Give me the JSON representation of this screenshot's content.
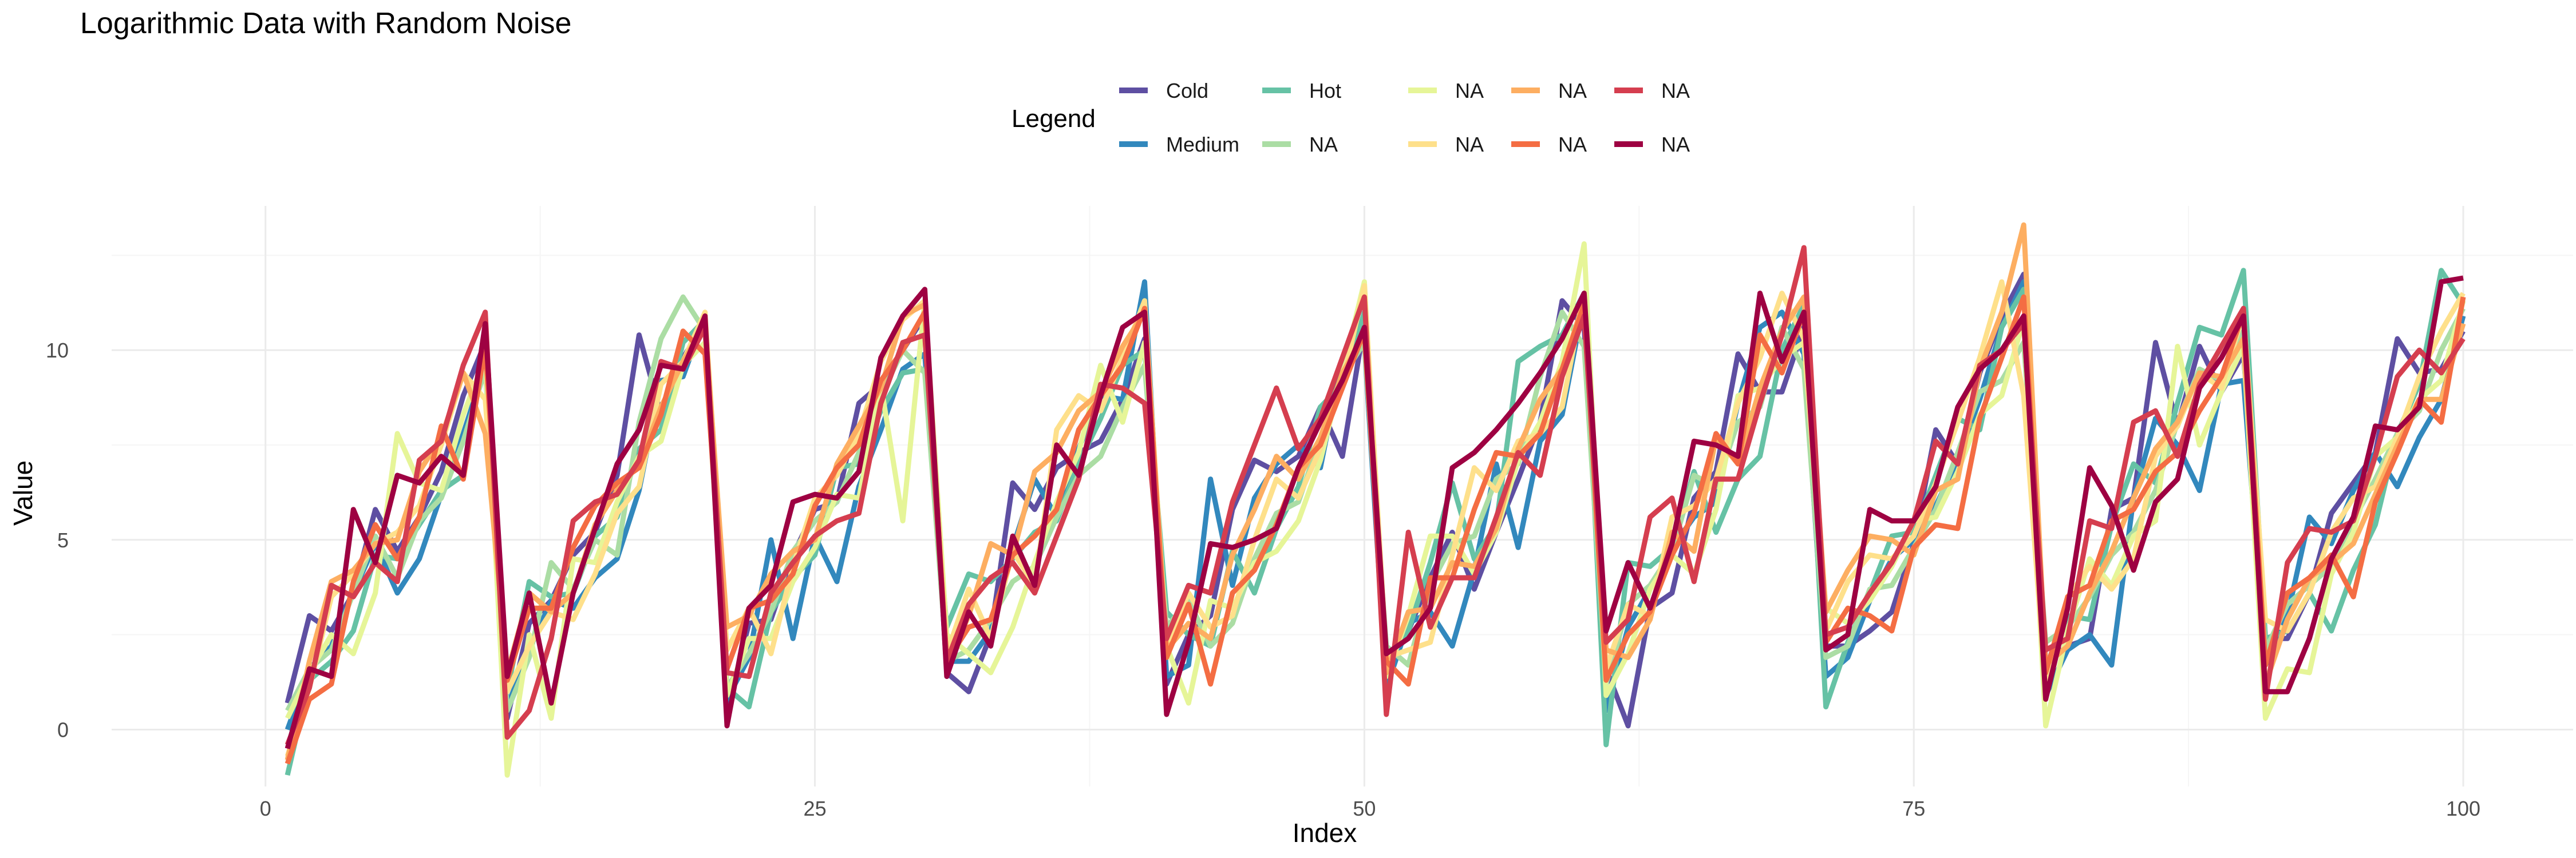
{
  "chart_data": {
    "type": "line",
    "title": "Logarithmic Data with Random Noise",
    "xlabel": "Index",
    "ylabel": "Value",
    "xlim": [
      -7,
      105
    ],
    "ylim": [
      -1.5,
      13.8
    ],
    "x_ticks": [
      0,
      25,
      50,
      75,
      100
    ],
    "y_ticks": [
      0,
      5,
      10
    ],
    "grid": true,
    "legend": {
      "title": "Legend",
      "position": "top",
      "entries": [
        {
          "label": "Cold",
          "color": "#5E4FA2"
        },
        {
          "label": "Medium",
          "color": "#3288BD"
        },
        {
          "label": "Hot",
          "color": "#66C2A5"
        },
        {
          "label": "NA",
          "color": "#ABDDA4"
        },
        {
          "label": "NA",
          "color": "#E6F598"
        },
        {
          "label": "NA",
          "color": "#FEE08B"
        },
        {
          "label": "NA",
          "color": "#FDAE61"
        },
        {
          "label": "NA",
          "color": "#F46D43"
        },
        {
          "label": "NA",
          "color": "#D53E4F"
        },
        {
          "label": "NA",
          "color": "#9E0142"
        }
      ]
    },
    "x": [
      1,
      2,
      3,
      4,
      5,
      6,
      7,
      8,
      9,
      10,
      11,
      12,
      13,
      14,
      15,
      16,
      17,
      18,
      19,
      20,
      21,
      22,
      23,
      24,
      25,
      26,
      27,
      28,
      29,
      30,
      31,
      32,
      33,
      34,
      35,
      36,
      37,
      38,
      39,
      40,
      41,
      42,
      43,
      44,
      45,
      46,
      47,
      48,
      49,
      50,
      51,
      52,
      53,
      54,
      55,
      56,
      57,
      58,
      59,
      60,
      61,
      62,
      63,
      64,
      65,
      66,
      67,
      68,
      69,
      70,
      71,
      72,
      73,
      74,
      75,
      76,
      77,
      78,
      79,
      80,
      81,
      82,
      83,
      84,
      85,
      86,
      87,
      88,
      89,
      90,
      91,
      92,
      93,
      94,
      95,
      96,
      97,
      98,
      99,
      100
    ],
    "series": [
      {
        "name": "Cold",
        "color": "#5E4FA2",
        "values": [
          0.7,
          3.0,
          2.6,
          3.6,
          5.8,
          4.7,
          5.6,
          6.8,
          8.8,
          10.2,
          0.3,
          2.8,
          3.4,
          4.6,
          5.2,
          6.7,
          10.4,
          8.3,
          9.8,
          10.7,
          0.5,
          2.8,
          2.9,
          4.6,
          5.8,
          6.0,
          8.6,
          9.1,
          10.0,
          10.9,
          1.5,
          1.0,
          2.5,
          6.5,
          5.8,
          6.9,
          7.3,
          7.6,
          8.7,
          10.3,
          1.2,
          2.5,
          3.0,
          5.8,
          7.1,
          6.8,
          7.2,
          8.5,
          7.2,
          10.7,
          1.8,
          2.6,
          4.0,
          5.2,
          3.7,
          5.2,
          6.6,
          8.1,
          11.3,
          10.6,
          1.6,
          0.1,
          3.2,
          3.6,
          6.1,
          6.8,
          9.9,
          8.9,
          8.9,
          10.6,
          2.2,
          2.2,
          2.6,
          3.1,
          4.9,
          7.9,
          7.0,
          9.4,
          10.9,
          12.0,
          1.8,
          2.2,
          2.4,
          5.8,
          6.1,
          10.2,
          8.0,
          10.1,
          8.9,
          9.9,
          2.4,
          2.4,
          3.6,
          5.7,
          6.5,
          7.3,
          10.3,
          9.4,
          9.5,
          10.5
        ]
      },
      {
        "name": "Medium",
        "color": "#3288BD",
        "values": [
          0.0,
          1.6,
          2.2,
          3.6,
          4.9,
          3.6,
          4.5,
          6.2,
          7.8,
          9.6,
          0.6,
          2.1,
          3.4,
          3.2,
          4.0,
          4.5,
          6.3,
          9.2,
          9.3,
          10.9,
          0.8,
          1.9,
          5.0,
          2.4,
          5.1,
          3.9,
          6.4,
          7.9,
          9.5,
          9.9,
          1.8,
          1.8,
          2.6,
          4.8,
          6.6,
          5.6,
          7.4,
          8.8,
          8.7,
          11.8,
          1.4,
          1.7,
          6.6,
          3.8,
          6.1,
          7.0,
          7.5,
          6.9,
          9.8,
          10.2,
          1.1,
          2.8,
          3.1,
          2.2,
          4.2,
          7.0,
          4.8,
          7.6,
          8.3,
          11.3,
          0.5,
          2.7,
          3.7,
          4.8,
          5.6,
          6.0,
          8.6,
          10.6,
          11.0,
          9.9,
          1.4,
          1.9,
          3.4,
          4.5,
          5.0,
          5.9,
          7.1,
          8.7,
          10.6,
          11.8,
          0.9,
          2.1,
          2.5,
          1.7,
          6.1,
          8.2,
          7.5,
          6.3,
          9.1,
          9.2,
          1.7,
          3.0,
          5.6,
          4.9,
          6.3,
          7.3,
          6.4,
          7.7,
          8.7,
          10.9
        ]
      },
      {
        "name": "Hot",
        "color": "#66C2A5",
        "values": [
          -1.2,
          1.3,
          1.8,
          2.6,
          4.6,
          4.5,
          5.4,
          6.3,
          6.7,
          10.1,
          1.0,
          3.9,
          3.5,
          3.6,
          5.1,
          5.6,
          7.4,
          7.9,
          10.2,
          10.8,
          1.1,
          0.6,
          3.1,
          4.0,
          4.6,
          6.9,
          7.0,
          8.4,
          9.4,
          9.5,
          2.7,
          4.1,
          3.9,
          4.5,
          5.2,
          5.5,
          7.0,
          8.2,
          9.6,
          10.0,
          3.1,
          2.5,
          2.2,
          4.7,
          3.6,
          5.3,
          6.4,
          8.5,
          9.1,
          11.0,
          1.9,
          2.6,
          4.4,
          6.5,
          4.5,
          5.4,
          9.7,
          10.1,
          10.4,
          11.5,
          -0.4,
          4.4,
          4.3,
          4.8,
          6.8,
          5.2,
          6.6,
          7.2,
          10.0,
          11.2,
          0.6,
          2.3,
          3.6,
          5.1,
          5.2,
          6.7,
          8.2,
          7.9,
          10.6,
          11.6,
          1.6,
          3.0,
          2.9,
          5.4,
          7.0,
          6.5,
          8.6,
          10.6,
          10.4,
          12.1,
          2.4,
          2.6,
          3.6,
          2.6,
          4.2,
          5.4,
          7.8,
          9.1,
          12.1,
          11.2
        ]
      },
      {
        "name": "NA",
        "color": "#ABDDA4",
        "values": [
          0.5,
          1.6,
          2.1,
          3.6,
          5.1,
          4.0,
          5.5,
          6.1,
          7.6,
          9.5,
          0.5,
          1.9,
          4.4,
          3.7,
          5.0,
          4.6,
          8.1,
          10.3,
          11.4,
          10.5,
          1.1,
          2.0,
          3.1,
          4.7,
          5.5,
          6.0,
          7.3,
          8.8,
          10.0,
          9.4,
          1.8,
          2.1,
          2.9,
          3.9,
          4.3,
          5.6,
          6.7,
          7.2,
          8.5,
          9.6,
          2.7,
          3.4,
          2.2,
          2.8,
          4.5,
          5.7,
          6.0,
          7.7,
          9.3,
          10.2,
          2.2,
          1.7,
          3.8,
          4.9,
          5.1,
          6.6,
          7.0,
          9.3,
          11.0,
          10.1,
          1.2,
          3.3,
          3.8,
          4.7,
          6.7,
          6.4,
          8.1,
          8.5,
          10.6,
          9.5,
          1.9,
          2.2,
          3.7,
          3.8,
          4.8,
          5.8,
          7.3,
          8.9,
          9.2,
          10.2,
          2.3,
          2.7,
          3.5,
          4.6,
          5.2,
          6.3,
          8.1,
          9.5,
          9.2,
          10.5,
          2.1,
          3.3,
          3.8,
          4.3,
          5.5,
          6.6,
          7.8,
          8.4,
          10.0,
          11.1
        ]
      },
      {
        "name": "NA",
        "color": "#E6F598",
        "values": [
          0.3,
          1.5,
          2.5,
          2.0,
          3.6,
          7.8,
          6.5,
          6.3,
          8.3,
          9.8,
          -1.2,
          2.5,
          0.3,
          4.5,
          4.4,
          6.0,
          7.2,
          7.6,
          9.6,
          10.2,
          0.9,
          2.4,
          2.4,
          3.9,
          4.8,
          6.2,
          6.1,
          9.1,
          5.5,
          11.3,
          2.5,
          2.0,
          1.5,
          2.7,
          4.4,
          6.0,
          7.3,
          9.6,
          8.1,
          10.2,
          2.2,
          0.7,
          3.4,
          3.2,
          4.4,
          4.7,
          5.5,
          7.1,
          9.4,
          11.8,
          1.4,
          3.0,
          5.1,
          5.1,
          4.1,
          5.2,
          7.1,
          8.1,
          9.7,
          12.8,
          0.9,
          2.0,
          3.7,
          4.6,
          4.1,
          5.8,
          8.8,
          9.0,
          9.8,
          10.2,
          3.2,
          2.8,
          3.4,
          4.3,
          5.5,
          5.6,
          6.8,
          8.3,
          8.8,
          10.8,
          0.1,
          2.6,
          4.5,
          3.8,
          5.1,
          5.5,
          10.1,
          7.5,
          8.9,
          10.1,
          0.3,
          1.6,
          1.5,
          4.1,
          5.2,
          7.2,
          7.7,
          8.7,
          9.2,
          11.3
        ]
      },
      {
        "name": "NA",
        "color": "#FEE08B",
        "values": [
          -0.7,
          1.1,
          3.5,
          4.1,
          4.9,
          5.2,
          5.9,
          7.5,
          9.4,
          8.7,
          1.0,
          2.2,
          3.1,
          2.9,
          4.1,
          5.7,
          6.4,
          9.1,
          9.7,
          11.0,
          2.1,
          3.2,
          2.0,
          4.3,
          6.1,
          6.7,
          7.8,
          9.7,
          10.8,
          11.3,
          2.0,
          3.7,
          2.4,
          4.7,
          3.8,
          7.9,
          8.8,
          8.4,
          9.8,
          11.3,
          2.2,
          3.6,
          2.7,
          3.0,
          5.0,
          6.6,
          6.1,
          7.4,
          9.1,
          11.7,
          1.9,
          2.1,
          2.3,
          4.6,
          6.9,
          6.3,
          7.6,
          7.8,
          8.5,
          11.5,
          1.6,
          3.3,
          3.0,
          5.6,
          5.9,
          6.6,
          8.6,
          9.8,
          11.5,
          10.3,
          2.6,
          3.9,
          4.6,
          4.5,
          5.1,
          6.5,
          8.1,
          9.8,
          11.8,
          8.8,
          1.0,
          3.5,
          4.3,
          3.7,
          4.5,
          7.2,
          8.0,
          9.4,
          9.0,
          11.0,
          2.9,
          2.6,
          3.6,
          5.2,
          6.1,
          6.4,
          7.7,
          9.3,
          10.5,
          11.5
        ]
      },
      {
        "name": "NA",
        "color": "#FDAE61",
        "values": [
          -0.8,
          1.8,
          3.9,
          4.2,
          4.9,
          5.0,
          6.8,
          7.7,
          9.4,
          7.8,
          1.5,
          3.6,
          3.1,
          3.6,
          5.4,
          6.3,
          7.0,
          8.5,
          9.7,
          10.7,
          2.7,
          3.0,
          4.1,
          4.7,
          5.0,
          7.0,
          8.0,
          9.0,
          10.9,
          11.2,
          1.7,
          3.0,
          4.9,
          4.6,
          6.8,
          7.3,
          8.4,
          8.9,
          10.1,
          11.0,
          2.1,
          2.8,
          2.4,
          4.6,
          5.8,
          7.2,
          6.6,
          7.7,
          9.4,
          10.4,
          1.5,
          3.1,
          3.2,
          4.4,
          4.3,
          5.3,
          7.4,
          8.7,
          9.5,
          11.3,
          2.1,
          1.9,
          2.9,
          5.2,
          4.7,
          7.7,
          7.0,
          9.0,
          10.5,
          11.4,
          3.1,
          4.2,
          5.1,
          5.0,
          4.6,
          6.3,
          6.6,
          9.5,
          11.0,
          13.3,
          1.7,
          2.2,
          3.6,
          4.7,
          6.1,
          7.4,
          8.1,
          9.4,
          9.3,
          10.3,
          1.2,
          2.9,
          4.0,
          4.4,
          4.9,
          6.2,
          7.5,
          8.7,
          8.7,
          10.7
        ]
      },
      {
        "name": "NA",
        "color": "#F46D43",
        "values": [
          -0.9,
          0.8,
          1.2,
          3.9,
          5.4,
          4.5,
          5.6,
          8.0,
          6.6,
          10.1,
          1.3,
          3.2,
          3.2,
          4.8,
          5.9,
          6.5,
          6.9,
          8.3,
          10.5,
          9.9,
          1.6,
          3.2,
          3.4,
          4.1,
          5.9,
          6.9,
          7.5,
          9.2,
          10.0,
          11.0,
          1.8,
          2.7,
          2.9,
          4.6,
          5.1,
          5.8,
          7.9,
          8.8,
          9.6,
          11.1,
          1.9,
          3.3,
          1.2,
          3.6,
          4.2,
          5.4,
          6.9,
          7.5,
          9.0,
          10.5,
          1.8,
          1.2,
          4.0,
          4.0,
          5.8,
          7.3,
          7.2,
          7.8,
          9.5,
          11.2,
          1.3,
          2.5,
          3.1,
          4.6,
          5.7,
          7.8,
          7.0,
          10.4,
          9.4,
          11.0,
          2.3,
          3.2,
          3.0,
          2.6,
          4.8,
          5.4,
          5.3,
          8.2,
          9.8,
          11.4,
          1.5,
          3.5,
          3.8,
          5.5,
          5.8,
          6.8,
          7.3,
          8.4,
          9.3,
          11.0,
          1.7,
          3.6,
          4.0,
          4.6,
          3.5,
          6.0,
          7.3,
          8.7,
          8.1,
          11.4
        ]
      },
      {
        "name": "NA",
        "color": "#D53E4F",
        "values": [
          -0.4,
          1.1,
          3.8,
          3.5,
          4.4,
          3.9,
          7.1,
          7.6,
          9.6,
          11.0,
          -0.2,
          0.5,
          2.4,
          5.5,
          6.0,
          6.2,
          7.1,
          9.7,
          9.5,
          10.6,
          1.5,
          1.4,
          3.6,
          4.4,
          5.1,
          5.5,
          5.7,
          8.6,
          10.2,
          10.4,
          1.8,
          3.3,
          4.0,
          4.4,
          3.6,
          5.1,
          6.6,
          9.1,
          9.0,
          8.6,
          2.4,
          3.8,
          3.6,
          6.0,
          7.5,
          9.0,
          7.4,
          8.2,
          9.8,
          11.4,
          0.4,
          5.2,
          2.7,
          4.0,
          4.0,
          5.6,
          7.3,
          6.7,
          9.3,
          10.9,
          2.3,
          2.9,
          5.6,
          6.1,
          3.9,
          6.6,
          6.6,
          8.6,
          10.4,
          12.7,
          2.5,
          2.7,
          3.6,
          4.4,
          5.5,
          7.6,
          7.0,
          9.6,
          10.0,
          10.7,
          2.1,
          2.4,
          5.5,
          5.3,
          8.1,
          8.4,
          7.2,
          9.1,
          10.1,
          11.1,
          0.8,
          4.4,
          5.3,
          5.2,
          5.5,
          7.2,
          9.3,
          10.0,
          9.4,
          10.3
        ]
      },
      {
        "name": "NA",
        "color": "#9E0142",
        "values": [
          -0.5,
          1.6,
          1.4,
          5.8,
          4.4,
          6.7,
          6.5,
          7.2,
          6.7,
          10.7,
          1.4,
          3.6,
          0.7,
          3.6,
          5.3,
          7.0,
          7.9,
          9.6,
          9.5,
          10.9,
          0.1,
          3.2,
          3.8,
          6.0,
          6.2,
          6.1,
          6.8,
          9.8,
          10.9,
          11.6,
          1.4,
          3.1,
          2.2,
          5.1,
          3.8,
          7.5,
          6.7,
          8.8,
          10.6,
          11.0,
          0.4,
          2.3,
          4.9,
          4.8,
          5.0,
          5.3,
          6.9,
          8.1,
          9.2,
          10.6,
          2.0,
          2.4,
          3.2,
          6.9,
          7.3,
          7.9,
          8.6,
          9.4,
          10.3,
          11.5,
          2.6,
          4.4,
          3.2,
          4.9,
          7.6,
          7.5,
          7.2,
          11.5,
          9.7,
          11.0,
          2.1,
          2.5,
          5.8,
          5.5,
          5.5,
          6.4,
          8.5,
          9.5,
          10.0,
          10.9,
          0.8,
          3.2,
          6.9,
          5.9,
          4.2,
          6.0,
          6.6,
          9.0,
          9.8,
          10.9,
          1.0,
          1.0,
          2.4,
          4.5,
          5.6,
          8.0,
          7.9,
          8.5,
          11.8,
          11.9
        ]
      }
    ]
  }
}
